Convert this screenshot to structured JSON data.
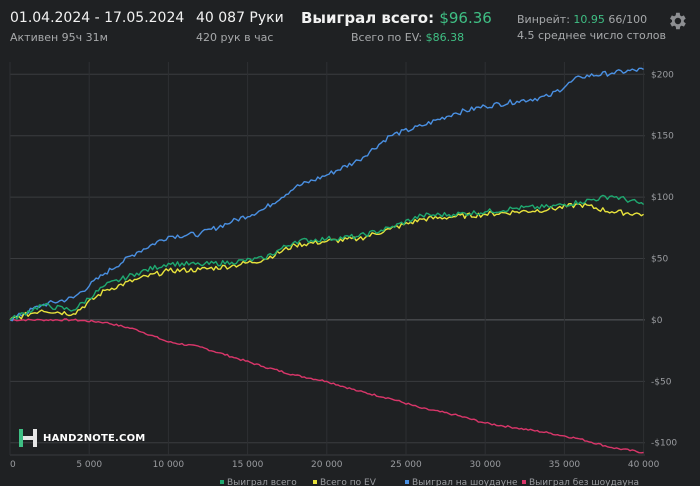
{
  "header": {
    "date_range": "01.04.2024 - 17.05.2024",
    "active_time": "Активен 95ч 31м",
    "hands": "40 087 Руки",
    "hands_rate": "420 рук в час",
    "won_total_label": "Выиграл всего: ",
    "won_total_value": "$96.36",
    "ev_total_label": "Всего по EV: ",
    "ev_total_value": "$86.38",
    "winrate_label": "Винрейт: ",
    "winrate_value": "10.95",
    "winrate_rest": " 66/100",
    "avg_tables": "4.5 среднее число столов",
    "settings_icon": "gear-icon"
  },
  "logo": {
    "text": "HAND2NOTE.COM",
    "icon": "h2n-logo-icon"
  },
  "colors": {
    "background": "#1f2123",
    "grid": "#3a3c3f",
    "won": "#1fa870",
    "ev": "#e8e33c",
    "showdown": "#4a90e2",
    "non_showdown": "#d9366a",
    "accent_green": "#3fbf84"
  },
  "chart_data": {
    "type": "line",
    "xlim": [
      0,
      40087
    ],
    "ylim": [
      -110,
      210
    ],
    "x_ticks": [
      0,
      5000,
      10000,
      15000,
      20000,
      25000,
      30000,
      35000,
      40000
    ],
    "x_tick_labels": [
      "0",
      "5 000",
      "10 000",
      "15 000",
      "20 000",
      "25 000",
      "30 000",
      "35 000",
      "40 000"
    ],
    "y_ticks": [
      200,
      150,
      100,
      50,
      0,
      -50,
      -100
    ],
    "y_tick_labels": [
      "$200",
      "$150",
      "$100",
      "$50",
      "$0",
      "-$50",
      "-$100"
    ],
    "grid": true,
    "legend_position": "bottom",
    "x": [
      0,
      2000,
      4000,
      6000,
      8000,
      10000,
      12000,
      14000,
      16000,
      18000,
      20000,
      22000,
      24000,
      26000,
      28000,
      30000,
      32000,
      34000,
      36000,
      38000,
      40000
    ],
    "series": [
      {
        "name": "Выиграл всего",
        "color": "#1fa870",
        "values": [
          0,
          12,
          8,
          28,
          38,
          46,
          45,
          47,
          50,
          64,
          66,
          68,
          75,
          85,
          86,
          88,
          91,
          92,
          96,
          101,
          94
        ]
      },
      {
        "name": "Всего по EV",
        "color": "#e8e33c",
        "values": [
          0,
          8,
          5,
          24,
          33,
          40,
          41,
          44,
          49,
          61,
          64,
          66,
          74,
          82,
          84,
          86,
          88,
          90,
          94,
          88,
          86
        ]
      },
      {
        "name": "Выиграл на шоудауне",
        "color": "#4a90e2",
        "values": [
          0,
          12,
          18,
          38,
          55,
          68,
          70,
          80,
          90,
          108,
          118,
          130,
          150,
          158,
          168,
          174,
          178,
          182,
          198,
          201,
          204
        ]
      },
      {
        "name": "Выиграл без шоудауна",
        "color": "#d9366a",
        "values": [
          0,
          0,
          0,
          -2,
          -8,
          -18,
          -22,
          -30,
          -38,
          -45,
          -50,
          -58,
          -64,
          -72,
          -77,
          -84,
          -88,
          -92,
          -97,
          -104,
          -108
        ]
      }
    ]
  }
}
